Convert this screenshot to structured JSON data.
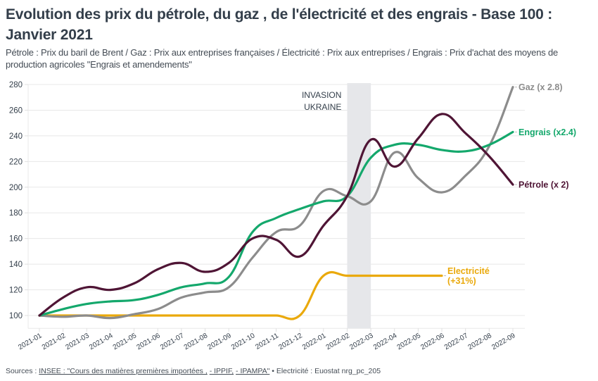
{
  "header": {
    "title": "Evolution des prix du pétrole, du gaz , de l'électricité et des engrais - Base 100 : Janvier 2021",
    "subtitle": "Pétrole : Prix du baril de Brent / Gaz : Prix aux entreprises françaises / Électricité : Prix aux entreprises / Engrais : Prix d'achat des moyens de production agricoles \"Engrais et amendements\""
  },
  "footer": {
    "prefix": "Sources : ",
    "link1": "INSEE : \"Cours des matières premières importées ,",
    "sep1": " ",
    "link2": "- IPPIF,",
    "sep2": " ",
    "link3": "- IPAMPA\"",
    "suffix": " • Electricité : Euostat nrg_pc_205"
  },
  "chart_data": {
    "type": "line",
    "title": "Evolution des prix du pétrole, du gaz , de l'électricité et des engrais - Base 100 : Janvier 2021",
    "xlabel": "",
    "ylabel": "",
    "ylim": [
      90,
      280
    ],
    "yticks": [
      100,
      120,
      140,
      160,
      180,
      200,
      220,
      240,
      260,
      280
    ],
    "grid": true,
    "legend": "direct-labels-right",
    "x": [
      "2021-01",
      "2021-02",
      "2021-03",
      "2021-04",
      "2021-05",
      "2021-06",
      "2021-07",
      "2021-08",
      "2021-09",
      "2021-10",
      "2021-11",
      "2021-12",
      "2022-01",
      "2022-02",
      "2022-03",
      "2022-04",
      "2022-05",
      "2022-06",
      "2022-07",
      "2022-08",
      "2022-09"
    ],
    "annotation": {
      "band_from": "2022-02",
      "band_to": "2022-03",
      "lines": [
        "INVASION",
        "UKRAINE"
      ]
    },
    "series": [
      {
        "name": "Gaz",
        "label_lines": [
          "Gaz (x 2.8)"
        ],
        "color": "#8c8c8c",
        "values": [
          100,
          99,
          100,
          98,
          101,
          105,
          114,
          118,
          122,
          145,
          165,
          170,
          197,
          193,
          189,
          227,
          207,
          196,
          209,
          232,
          278
        ]
      },
      {
        "name": "Engrais",
        "label_lines": [
          "Engrais (x2.4)"
        ],
        "color": "#14a86c",
        "values": [
          100,
          105,
          109,
          111,
          112,
          116,
          122,
          125,
          130,
          165,
          176,
          183,
          189,
          193,
          223,
          233,
          233,
          229,
          228,
          233,
          243
        ]
      },
      {
        "name": "Pétrole",
        "label_lines": [
          "Pétrole (x 2)"
        ],
        "color": "#4f1535",
        "values": [
          100,
          114,
          122,
          120,
          125,
          136,
          141,
          134,
          141,
          160,
          159,
          146,
          170,
          193,
          237,
          216,
          238,
          257,
          242,
          224,
          202
        ]
      },
      {
        "name": "Electricité",
        "label_lines": [
          "Electricité",
          "(+31%)"
        ],
        "color": "#eaa90b",
        "values": [
          100,
          100,
          100,
          100,
          100,
          100,
          100,
          100,
          100,
          100,
          100,
          100,
          131,
          131,
          131,
          131,
          131,
          131,
          null,
          null,
          null
        ]
      }
    ]
  }
}
